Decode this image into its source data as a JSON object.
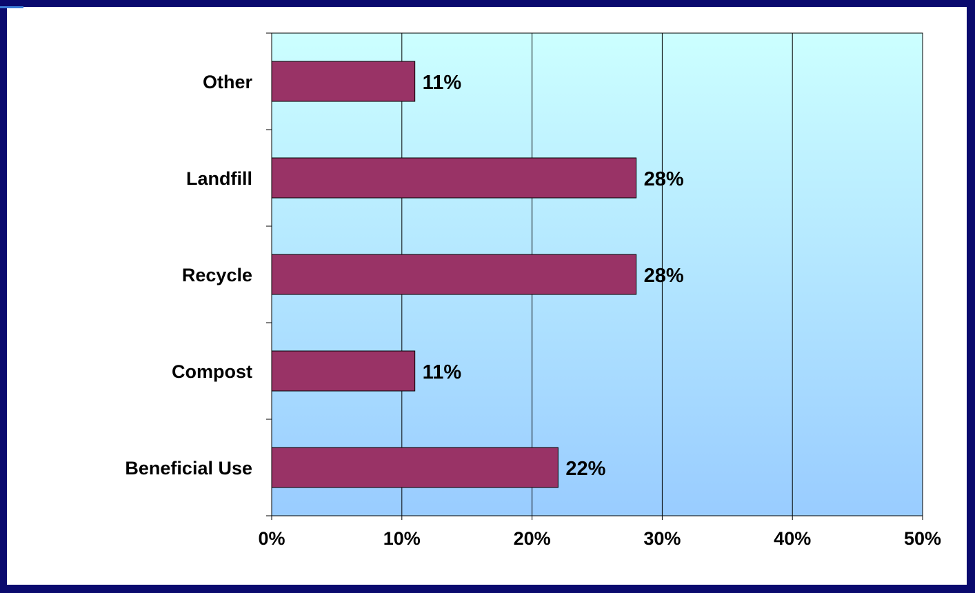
{
  "chart_data": {
    "type": "bar",
    "orientation": "horizontal",
    "categories": [
      "Beneficial Use",
      "Compost",
      "Recycle",
      "Landfill",
      "Other"
    ],
    "values": [
      22,
      11,
      28,
      28,
      11
    ],
    "data_labels": [
      "22%",
      "11%",
      "28%",
      "28%",
      "11%"
    ],
    "xlim": [
      0,
      50
    ],
    "x_ticks": [
      0,
      10,
      20,
      30,
      40,
      50
    ],
    "x_tick_labels": [
      "0%",
      "10%",
      "20%",
      "30%",
      "40%",
      "50%"
    ],
    "title": "",
    "xlabel": "",
    "ylabel": "",
    "grid": "vertical",
    "legend": "none",
    "colors": {
      "bar": "#993366",
      "plot_top": "#ccffff",
      "plot_bottom": "#99ccff",
      "frame": "#0a0a6e",
      "accent": "#3a7bd5"
    }
  }
}
